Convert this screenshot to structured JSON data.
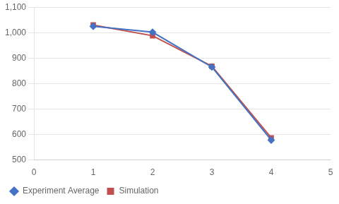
{
  "chart_data": {
    "type": "line",
    "x": [
      1,
      2,
      3,
      4
    ],
    "series": [
      {
        "name": "Experiment Average",
        "color": "#4472C4",
        "marker": "diamond",
        "values": [
          1025,
          1002,
          865,
          578
        ]
      },
      {
        "name": "Simulation",
        "color": "#C0504D",
        "marker": "square",
        "values": [
          1030,
          988,
          868,
          587
        ]
      }
    ],
    "xlim": [
      0,
      5
    ],
    "xticks": [
      0,
      1,
      2,
      3,
      4,
      5
    ],
    "ylim": [
      500,
      1100
    ],
    "yticks": [
      500,
      600,
      700,
      800,
      900,
      1000,
      1100
    ],
    "grid": "y",
    "legend": "lower left"
  }
}
